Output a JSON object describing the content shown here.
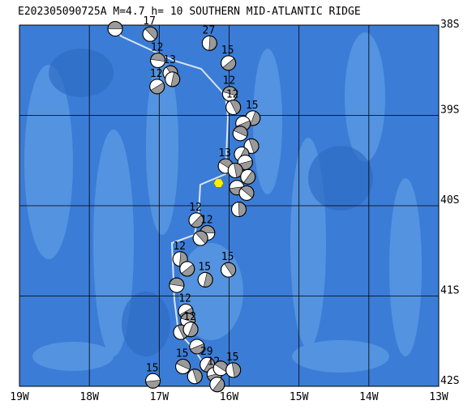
{
  "map": {
    "title": "E202305090725A  M=4.7 h= 10 SOUTHERN MID-ATLANTIC RIDGE",
    "lonlim": [
      -19,
      -13
    ],
    "latlim": [
      -38,
      -42
    ],
    "lonticks": [
      {
        "value": -19,
        "label": "19W"
      },
      {
        "value": -18,
        "label": "18W"
      },
      {
        "value": -17,
        "label": "17W"
      },
      {
        "value": -16,
        "label": "16W"
      },
      {
        "value": -15,
        "label": "15W"
      },
      {
        "value": -14,
        "label": "14W"
      },
      {
        "value": -13,
        "label": "13W"
      }
    ],
    "latticks": [
      {
        "value": -38,
        "label": "38S"
      },
      {
        "value": -39,
        "label": "39S"
      },
      {
        "value": -40,
        "label": "40S"
      },
      {
        "value": -41,
        "label": "41S"
      },
      {
        "value": -42,
        "label": "42S"
      }
    ],
    "main_event": {
      "lon": -16.15,
      "lat": -39.75,
      "color": "#ffee00"
    },
    "events": [
      {
        "lon": -17.63,
        "lat": -38.04
      },
      {
        "lon": -17.13,
        "lat": -38.1,
        "depth": "17"
      },
      {
        "lon": -16.28,
        "lat": -38.2,
        "depth": "27"
      },
      {
        "lon": -16.01,
        "lat": -38.42,
        "depth": "15"
      },
      {
        "lon": -17.02,
        "lat": -38.39,
        "depth": "12"
      },
      {
        "lon": -16.84,
        "lat": -38.53,
        "depth": "13"
      },
      {
        "lon": -16.81,
        "lat": -38.6
      },
      {
        "lon": -17.03,
        "lat": -38.68,
        "depth": "12"
      },
      {
        "lon": -15.99,
        "lat": -38.76,
        "depth": "12"
      },
      {
        "lon": -15.94,
        "lat": -38.91,
        "depth": "12"
      },
      {
        "lon": -15.66,
        "lat": -39.03,
        "depth": "15"
      },
      {
        "lon": -15.8,
        "lat": -39.09
      },
      {
        "lon": -15.84,
        "lat": -39.2
      },
      {
        "lon": -15.68,
        "lat": -39.34
      },
      {
        "lon": -15.82,
        "lat": -39.43
      },
      {
        "lon": -15.77,
        "lat": -39.52
      },
      {
        "lon": -16.05,
        "lat": -39.56,
        "depth": "13"
      },
      {
        "lon": -15.91,
        "lat": -39.61
      },
      {
        "lon": -15.73,
        "lat": -39.68
      },
      {
        "lon": -15.89,
        "lat": -39.8
      },
      {
        "lon": -15.75,
        "lat": -39.86
      },
      {
        "lon": -15.86,
        "lat": -40.04
      },
      {
        "lon": -16.47,
        "lat": -40.16,
        "depth": "12"
      },
      {
        "lon": -16.31,
        "lat": -40.3,
        "depth": "12"
      },
      {
        "lon": -16.41,
        "lat": -40.36
      },
      {
        "lon": -16.7,
        "lat": -40.59,
        "depth": "12"
      },
      {
        "lon": -16.6,
        "lat": -40.7
      },
      {
        "lon": -16.75,
        "lat": -40.88
      },
      {
        "lon": -16.01,
        "lat": -40.71,
        "depth": "15"
      },
      {
        "lon": -16.34,
        "lat": -40.82,
        "depth": "15"
      },
      {
        "lon": -16.62,
        "lat": -41.17,
        "depth": "12"
      },
      {
        "lon": -16.59,
        "lat": -41.27
      },
      {
        "lon": -16.69,
        "lat": -41.4
      },
      {
        "lon": -16.55,
        "lat": -41.37,
        "depth": "12"
      },
      {
        "lon": -16.46,
        "lat": -41.56
      },
      {
        "lon": -16.66,
        "lat": -41.78,
        "depth": "15"
      },
      {
        "lon": -16.49,
        "lat": -41.89
      },
      {
        "lon": -16.31,
        "lat": -41.76,
        "depth": "29"
      },
      {
        "lon": -16.21,
        "lat": -41.87,
        "depth": "12"
      },
      {
        "lon": -16.12,
        "lat": -41.8
      },
      {
        "lon": -15.94,
        "lat": -41.82,
        "depth": "15"
      },
      {
        "lon": -16.17,
        "lat": -41.98
      },
      {
        "lon": -17.09,
        "lat": -41.94,
        "depth": "15"
      }
    ]
  }
}
